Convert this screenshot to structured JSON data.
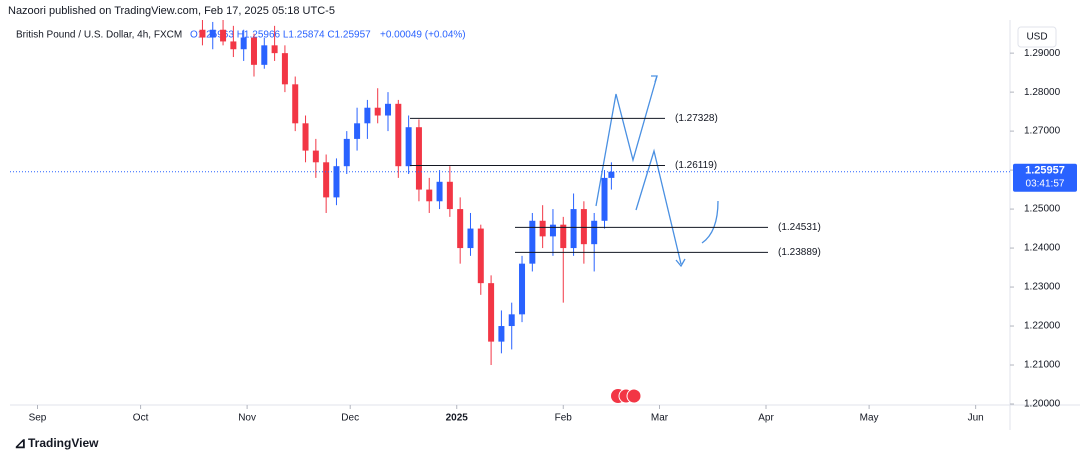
{
  "header": {
    "published": "Nazoori published on TradingView.com, Feb 17, 2025 05:18 UTC-5",
    "symbol": "British Pound / U.S. Dollar, 4h, FXCM",
    "ohlc": "O1.25963 H1.25966 L1.25874 C1.25957",
    "change": "+0.00049 (+0.04%)",
    "currency": "USD"
  },
  "footer": {
    "brand": "TradingView"
  },
  "chart_data": {
    "type": "candlestick",
    "x": [
      48,
      51,
      54,
      57,
      60,
      63,
      66,
      69,
      72,
      75,
      78,
      81,
      84,
      87,
      90,
      93,
      96,
      99,
      102,
      105,
      108,
      111,
      114,
      117,
      120,
      123,
      126,
      129,
      132,
      135,
      138,
      141,
      144,
      147,
      150,
      153,
      156,
      159,
      162,
      165,
      167
    ],
    "open": [
      1.296,
      1.294,
      1.296,
      1.293,
      1.291,
      1.294,
      1.287,
      1.292,
      1.29,
      1.282,
      1.272,
      1.265,
      1.262,
      1.253,
      1.261,
      1.268,
      1.272,
      1.276,
      1.274,
      1.277,
      1.261,
      1.271,
      1.255,
      1.252,
      1.257,
      1.25,
      1.24,
      1.245,
      1.231,
      1.216,
      1.22,
      1.223,
      1.236,
      1.247,
      1.243,
      1.246,
      1.24,
      1.25,
      1.241,
      1.247,
      1.258
    ],
    "high": [
      1.299,
      1.298,
      1.299,
      1.297,
      1.296,
      1.295,
      1.294,
      1.297,
      1.292,
      1.284,
      1.274,
      1.268,
      1.264,
      1.263,
      1.27,
      1.276,
      1.278,
      1.281,
      1.28,
      1.278,
      1.274,
      1.273,
      1.258,
      1.26,
      1.261,
      1.253,
      1.249,
      1.246,
      1.233,
      1.224,
      1.226,
      1.238,
      1.249,
      1.251,
      1.25,
      1.248,
      1.254,
      1.252,
      1.249,
      1.26,
      1.262
    ],
    "low": [
      1.292,
      1.291,
      1.292,
      1.289,
      1.288,
      1.284,
      1.286,
      1.288,
      1.28,
      1.27,
      1.262,
      1.258,
      1.249,
      1.251,
      1.259,
      1.265,
      1.268,
      1.272,
      1.27,
      1.258,
      1.259,
      1.252,
      1.249,
      1.25,
      1.248,
      1.236,
      1.238,
      1.228,
      1.21,
      1.213,
      1.214,
      1.221,
      1.234,
      1.24,
      1.238,
      1.226,
      1.238,
      1.236,
      1.234,
      1.245,
      1.255
    ],
    "close": [
      1.294,
      1.296,
      1.293,
      1.291,
      1.294,
      1.287,
      1.292,
      1.29,
      1.282,
      1.272,
      1.265,
      1.262,
      1.253,
      1.261,
      1.268,
      1.272,
      1.276,
      1.274,
      1.277,
      1.261,
      1.271,
      1.255,
      1.252,
      1.257,
      1.25,
      1.24,
      1.245,
      1.231,
      1.216,
      1.22,
      1.223,
      1.236,
      1.247,
      1.243,
      1.246,
      1.24,
      1.25,
      1.241,
      1.247,
      1.258,
      1.25957
    ],
    "up_color": "#2962ff",
    "down_color": "#f23645",
    "xlim": [
      -8,
      283
    ],
    "xticks": [
      {
        "value": 0,
        "label": "Sep"
      },
      {
        "value": 30,
        "label": "Oct"
      },
      {
        "value": 61,
        "label": "Nov"
      },
      {
        "value": 91,
        "label": "Dec"
      },
      {
        "value": 122,
        "label": "2025"
      },
      {
        "value": 153,
        "label": "Feb"
      },
      {
        "value": 181,
        "label": "Mar"
      },
      {
        "value": 212,
        "label": "Apr"
      },
      {
        "value": 242,
        "label": "May"
      },
      {
        "value": 273,
        "label": "Jun"
      }
    ],
    "ylim": [
      1.2,
      1.2985
    ],
    "yticks": [
      {
        "value": 1.2,
        "label": "1.20000"
      },
      {
        "value": 1.21,
        "label": "1.21000"
      },
      {
        "value": 1.22,
        "label": "1.22000"
      },
      {
        "value": 1.23,
        "label": "1.23000"
      },
      {
        "value": 1.24,
        "label": "1.24000"
      },
      {
        "value": 1.25,
        "label": "1.25000"
      },
      {
        "value": 1.26,
        "label": "1.26000"
      },
      {
        "value": 1.27,
        "label": "1.27000"
      },
      {
        "value": 1.28,
        "label": "1.28000"
      },
      {
        "value": 1.29,
        "label": "1.29000"
      }
    ],
    "levels": [
      {
        "value": 1.27328,
        "label": "(1.27328)"
      },
      {
        "value": 1.26119,
        "label": "(1.26119)"
      },
      {
        "value": 1.24531,
        "label": "(1.24531)"
      },
      {
        "value": 1.23889,
        "label": "(1.23889)"
      }
    ],
    "last_price": {
      "value": 1.25957,
      "label": "1.25957"
    },
    "countdown": "03:41:57"
  }
}
